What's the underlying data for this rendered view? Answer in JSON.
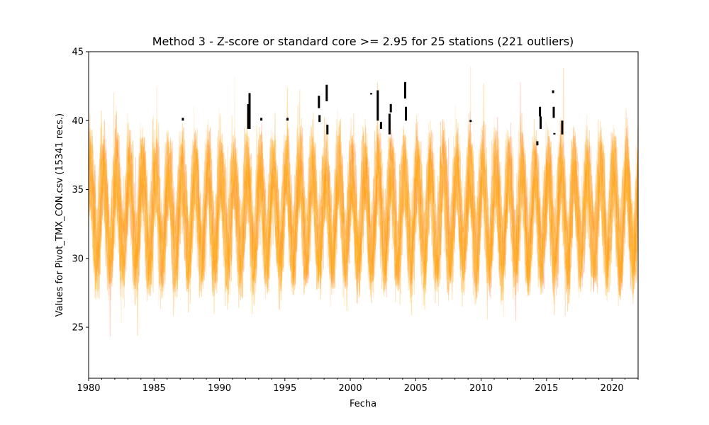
{
  "chart_data": {
    "type": "line",
    "title": "Method 3 - Z-score or standard core >= 2.95 for 25 stations (221 outliers)",
    "xlabel": "Fecha",
    "ylabel": "Values for Pivot_TMX_CON.csv (15341 recs.)",
    "xlim": [
      1980,
      2022
    ],
    "ylim": [
      21.3,
      45.0
    ],
    "x_ticks": [
      1980,
      1985,
      1990,
      1995,
      2000,
      2005,
      2010,
      2015,
      2020
    ],
    "y_ticks": [
      25,
      30,
      35,
      40,
      45
    ],
    "grid": false,
    "legend": "none",
    "series_count": 25,
    "series_palette": [
      "#ffa726",
      "#ffb74d",
      "#ff8a65",
      "#ffcc80",
      "#ffab40",
      "#ff9800",
      "#ffe0b2",
      "#ffb300"
    ],
    "series_alpha": 0.35,
    "typical_range": [
      29,
      38
    ],
    "extreme_range": [
      22.4,
      44.0
    ],
    "outlier_color": "#000000",
    "outliers": [
      {
        "x": 1987.2,
        "y_low": 40.0,
        "y_high": 40.2
      },
      {
        "x": 1992.2,
        "y_low": 39.4,
        "y_high": 41.2
      },
      {
        "x": 1992.3,
        "y_low": 39.4,
        "y_high": 42.0
      },
      {
        "x": 1993.2,
        "y_low": 40.0,
        "y_high": 40.2
      },
      {
        "x": 1995.2,
        "y_low": 40.0,
        "y_high": 40.2
      },
      {
        "x": 1997.6,
        "y_low": 40.9,
        "y_high": 41.8
      },
      {
        "x": 1997.65,
        "y_low": 39.9,
        "y_high": 40.4
      },
      {
        "x": 1998.2,
        "y_low": 41.4,
        "y_high": 42.6
      },
      {
        "x": 1998.25,
        "y_low": 39.0,
        "y_high": 39.7
      },
      {
        "x": 2001.6,
        "y_low": 41.9,
        "y_high": 42.0
      },
      {
        "x": 2002.1,
        "y_low": 40.0,
        "y_high": 42.2
      },
      {
        "x": 2002.35,
        "y_low": 39.4,
        "y_high": 39.9
      },
      {
        "x": 2003.0,
        "y_low": 39.0,
        "y_high": 40.5
      },
      {
        "x": 2003.1,
        "y_low": 40.6,
        "y_high": 41.2
      },
      {
        "x": 2004.2,
        "y_low": 41.6,
        "y_high": 42.8
      },
      {
        "x": 2004.25,
        "y_low": 40.0,
        "y_high": 41.0
      },
      {
        "x": 2009.2,
        "y_low": 39.9,
        "y_high": 40.05
      },
      {
        "x": 2014.3,
        "y_low": 38.2,
        "y_high": 38.5
      },
      {
        "x": 2014.5,
        "y_low": 40.3,
        "y_high": 41.0
      },
      {
        "x": 2014.55,
        "y_low": 39.4,
        "y_high": 40.3
      },
      {
        "x": 2015.5,
        "y_low": 42.0,
        "y_high": 42.2
      },
      {
        "x": 2015.55,
        "y_low": 40.2,
        "y_high": 41.0
      },
      {
        "x": 2015.6,
        "y_low": 39.0,
        "y_high": 39.1
      },
      {
        "x": 2016.2,
        "y_low": 39.0,
        "y_high": 40.0
      }
    ]
  }
}
